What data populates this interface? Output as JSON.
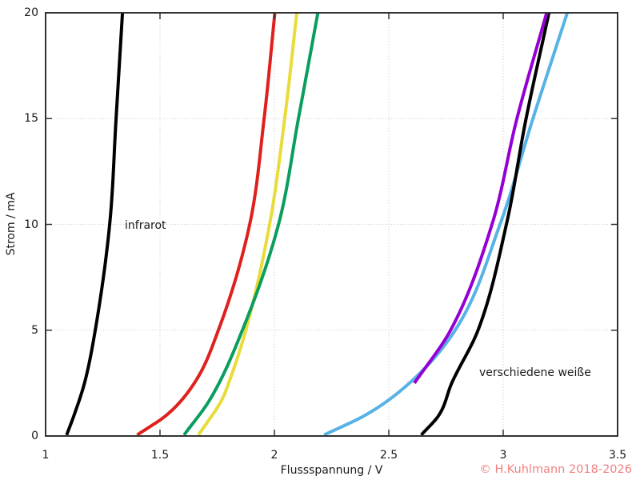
{
  "window": {
    "background": "#ffffff"
  },
  "chart_data": {
    "type": "line",
    "title": "",
    "xlabel": "Flussspannung / V",
    "ylabel": "Strom / mA",
    "xlim": [
      1,
      3.5
    ],
    "ylim": [
      0,
      20
    ],
    "grid": true,
    "legend": "none",
    "x_ticks": [
      {
        "value": 1,
        "label": "1"
      },
      {
        "value": 1.5,
        "label": "1.5"
      },
      {
        "value": 2,
        "label": "2"
      },
      {
        "value": 2.5,
        "label": "2.5"
      },
      {
        "value": 3,
        "label": "3"
      },
      {
        "value": 3.5,
        "label": "3.5"
      }
    ],
    "y_ticks": [
      {
        "value": 0,
        "label": "0"
      },
      {
        "value": 5,
        "label": "5"
      },
      {
        "value": 10,
        "label": "10"
      },
      {
        "value": 15,
        "label": "15"
      },
      {
        "value": 20,
        "label": "20"
      }
    ],
    "series": [
      {
        "name": "infrarot (schwarz)",
        "color": "#000000",
        "points_V_mA": [
          [
            1.092,
            0.05
          ],
          [
            1.125,
            1
          ],
          [
            1.17,
            2.5
          ],
          [
            1.217,
            5
          ],
          [
            1.28,
            10
          ],
          [
            1.308,
            15
          ],
          [
            1.336,
            20
          ]
        ]
      },
      {
        "name": "rot",
        "color": "#de211d",
        "points_V_mA": [
          [
            1.4,
            0.05
          ],
          [
            1.53,
            1
          ],
          [
            1.65,
            2.5
          ],
          [
            1.755,
            5
          ],
          [
            1.892,
            10
          ],
          [
            1.955,
            15
          ],
          [
            2.002,
            20
          ]
        ]
      },
      {
        "name": "gelb",
        "color": "#e9dc3a",
        "points_V_mA": [
          [
            1.668,
            0.05
          ],
          [
            1.77,
            1.7
          ],
          [
            1.8,
            2.5
          ],
          [
            1.875,
            5
          ],
          [
            1.979,
            10
          ],
          [
            2.045,
            15
          ],
          [
            2.098,
            20
          ]
        ]
      },
      {
        "name": "grün",
        "color": "#0a9e5e",
        "points_V_mA": [
          [
            1.605,
            0.05
          ],
          [
            1.717,
            1.7
          ],
          [
            1.86,
            5
          ],
          [
            2.018,
            10
          ],
          [
            2.105,
            15
          ],
          [
            2.19,
            20
          ]
        ]
      },
      {
        "name": "blau (hellblau)",
        "color": "#57b2e6",
        "points_V_mA": [
          [
            2.217,
            0.05
          ],
          [
            2.4,
            1
          ],
          [
            2.59,
            2.5
          ],
          [
            2.79,
            5
          ],
          [
            2.986,
            10
          ],
          [
            3.13,
            15
          ],
          [
            3.28,
            20
          ]
        ]
      },
      {
        "name": "weiß (schwarz)",
        "color": "#000000",
        "points_V_mA": [
          [
            2.642,
            0.05
          ],
          [
            2.72,
            1
          ],
          [
            2.775,
            2.5
          ],
          [
            2.89,
            5
          ],
          [
            3.014,
            10
          ],
          [
            3.1,
            15
          ],
          [
            3.2,
            20
          ]
        ]
      },
      {
        "name": "violett",
        "color": "#9400d3",
        "points_V_mA": [
          [
            2.612,
            2.5
          ],
          [
            2.77,
            5
          ],
          [
            2.951,
            10
          ],
          [
            3.06,
            15
          ],
          [
            3.19,
            20
          ]
        ]
      }
    ],
    "annotations": [
      {
        "text": "infrarot"
      },
      {
        "text": "verschiedene weiße"
      }
    ]
  },
  "axes": {
    "x_label": "Flussspannung / V",
    "y_label": "Strom / mA"
  },
  "annotations": {
    "infrarot": "infrarot",
    "weisse": "verschiedene weiße"
  },
  "copyright": {
    "text": "© H.Kuhlmann 2018-2026",
    "color": "#f08080"
  },
  "style": {
    "border_color": "#333333",
    "grid_color": "#c6c6c6",
    "text_color": "#1a1a1a"
  }
}
